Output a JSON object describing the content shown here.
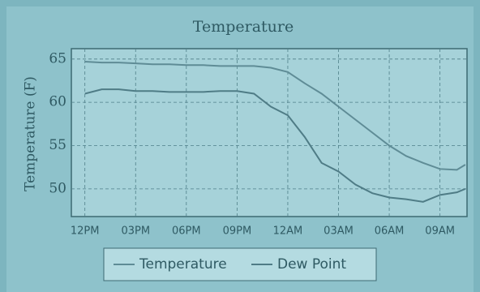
{
  "chart_data": {
    "type": "line",
    "title": "Temperature",
    "y_label": "Temperature (F)",
    "x": [
      0,
      1,
      2,
      3,
      4,
      5,
      6,
      7,
      8,
      9,
      10,
      11,
      12,
      13,
      14,
      15,
      16,
      17,
      18,
      19,
      20,
      21,
      22,
      22.5
    ],
    "series": [
      {
        "name": "Temperature",
        "color": "#5f8c96",
        "values": [
          64.7,
          64.6,
          64.6,
          64.5,
          64.4,
          64.4,
          64.3,
          64.3,
          64.2,
          64.2,
          64.2,
          64.0,
          63.5,
          62.2,
          61.0,
          59.5,
          58.0,
          56.5,
          55.0,
          53.8,
          53.0,
          52.3,
          52.2,
          52.8
        ]
      },
      {
        "name": "Dew Point",
        "color": "#4f7c86",
        "values": [
          61.0,
          61.5,
          61.5,
          61.3,
          61.3,
          61.2,
          61.2,
          61.2,
          61.3,
          61.3,
          61.0,
          59.5,
          58.5,
          56.0,
          53.0,
          52.0,
          50.5,
          49.5,
          49.0,
          48.8,
          48.5,
          49.3,
          49.6,
          50.0
        ]
      }
    ],
    "xlim": [
      -0.8,
      22.6
    ],
    "xticks": [
      {
        "value": 0,
        "label": "12PM"
      },
      {
        "value": 3,
        "label": "03PM"
      },
      {
        "value": 6,
        "label": "06PM"
      },
      {
        "value": 9,
        "label": "09PM"
      },
      {
        "value": 12,
        "label": "12AM"
      },
      {
        "value": 15,
        "label": "03AM"
      },
      {
        "value": 18,
        "label": "06AM"
      },
      {
        "value": 21,
        "label": "09AM"
      }
    ],
    "ylim": [
      46.8,
      66.2
    ],
    "yticks": [
      50,
      55,
      60,
      65
    ],
    "grid": true
  }
}
